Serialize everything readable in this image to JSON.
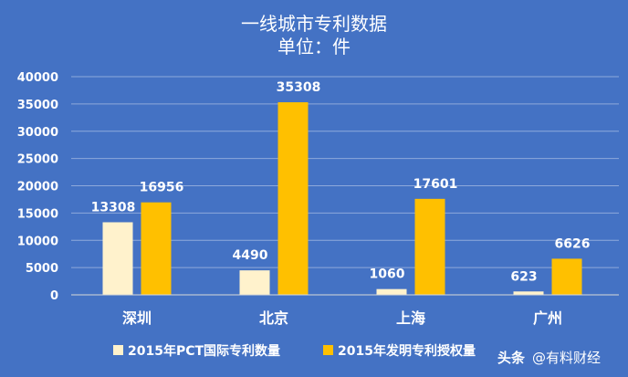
{
  "chart_data": {
    "type": "bar",
    "title": "一线城市专利数据",
    "subtitle": "单位：件",
    "categories": [
      "深圳",
      "北京",
      "上海",
      "广州"
    ],
    "series": [
      {
        "name": "2015年PCT国际专利数量",
        "values": [
          13308,
          4490,
          1060,
          623
        ],
        "color": "#FFF2CC"
      },
      {
        "name": "2015年发明专利授权量",
        "values": [
          16956,
          35308,
          17601,
          6626
        ],
        "color": "#FFC000"
      }
    ],
    "ylim": [
      0,
      40000
    ],
    "yticks": [
      "0",
      "5000",
      "10000",
      "15000",
      "20000",
      "25000",
      "30000",
      "35000",
      "40000"
    ],
    "grid": true,
    "legend_position": "bottom",
    "background_color": "#4472C4"
  },
  "watermark": {
    "prefix": "头条",
    "text": "@有料财经"
  }
}
